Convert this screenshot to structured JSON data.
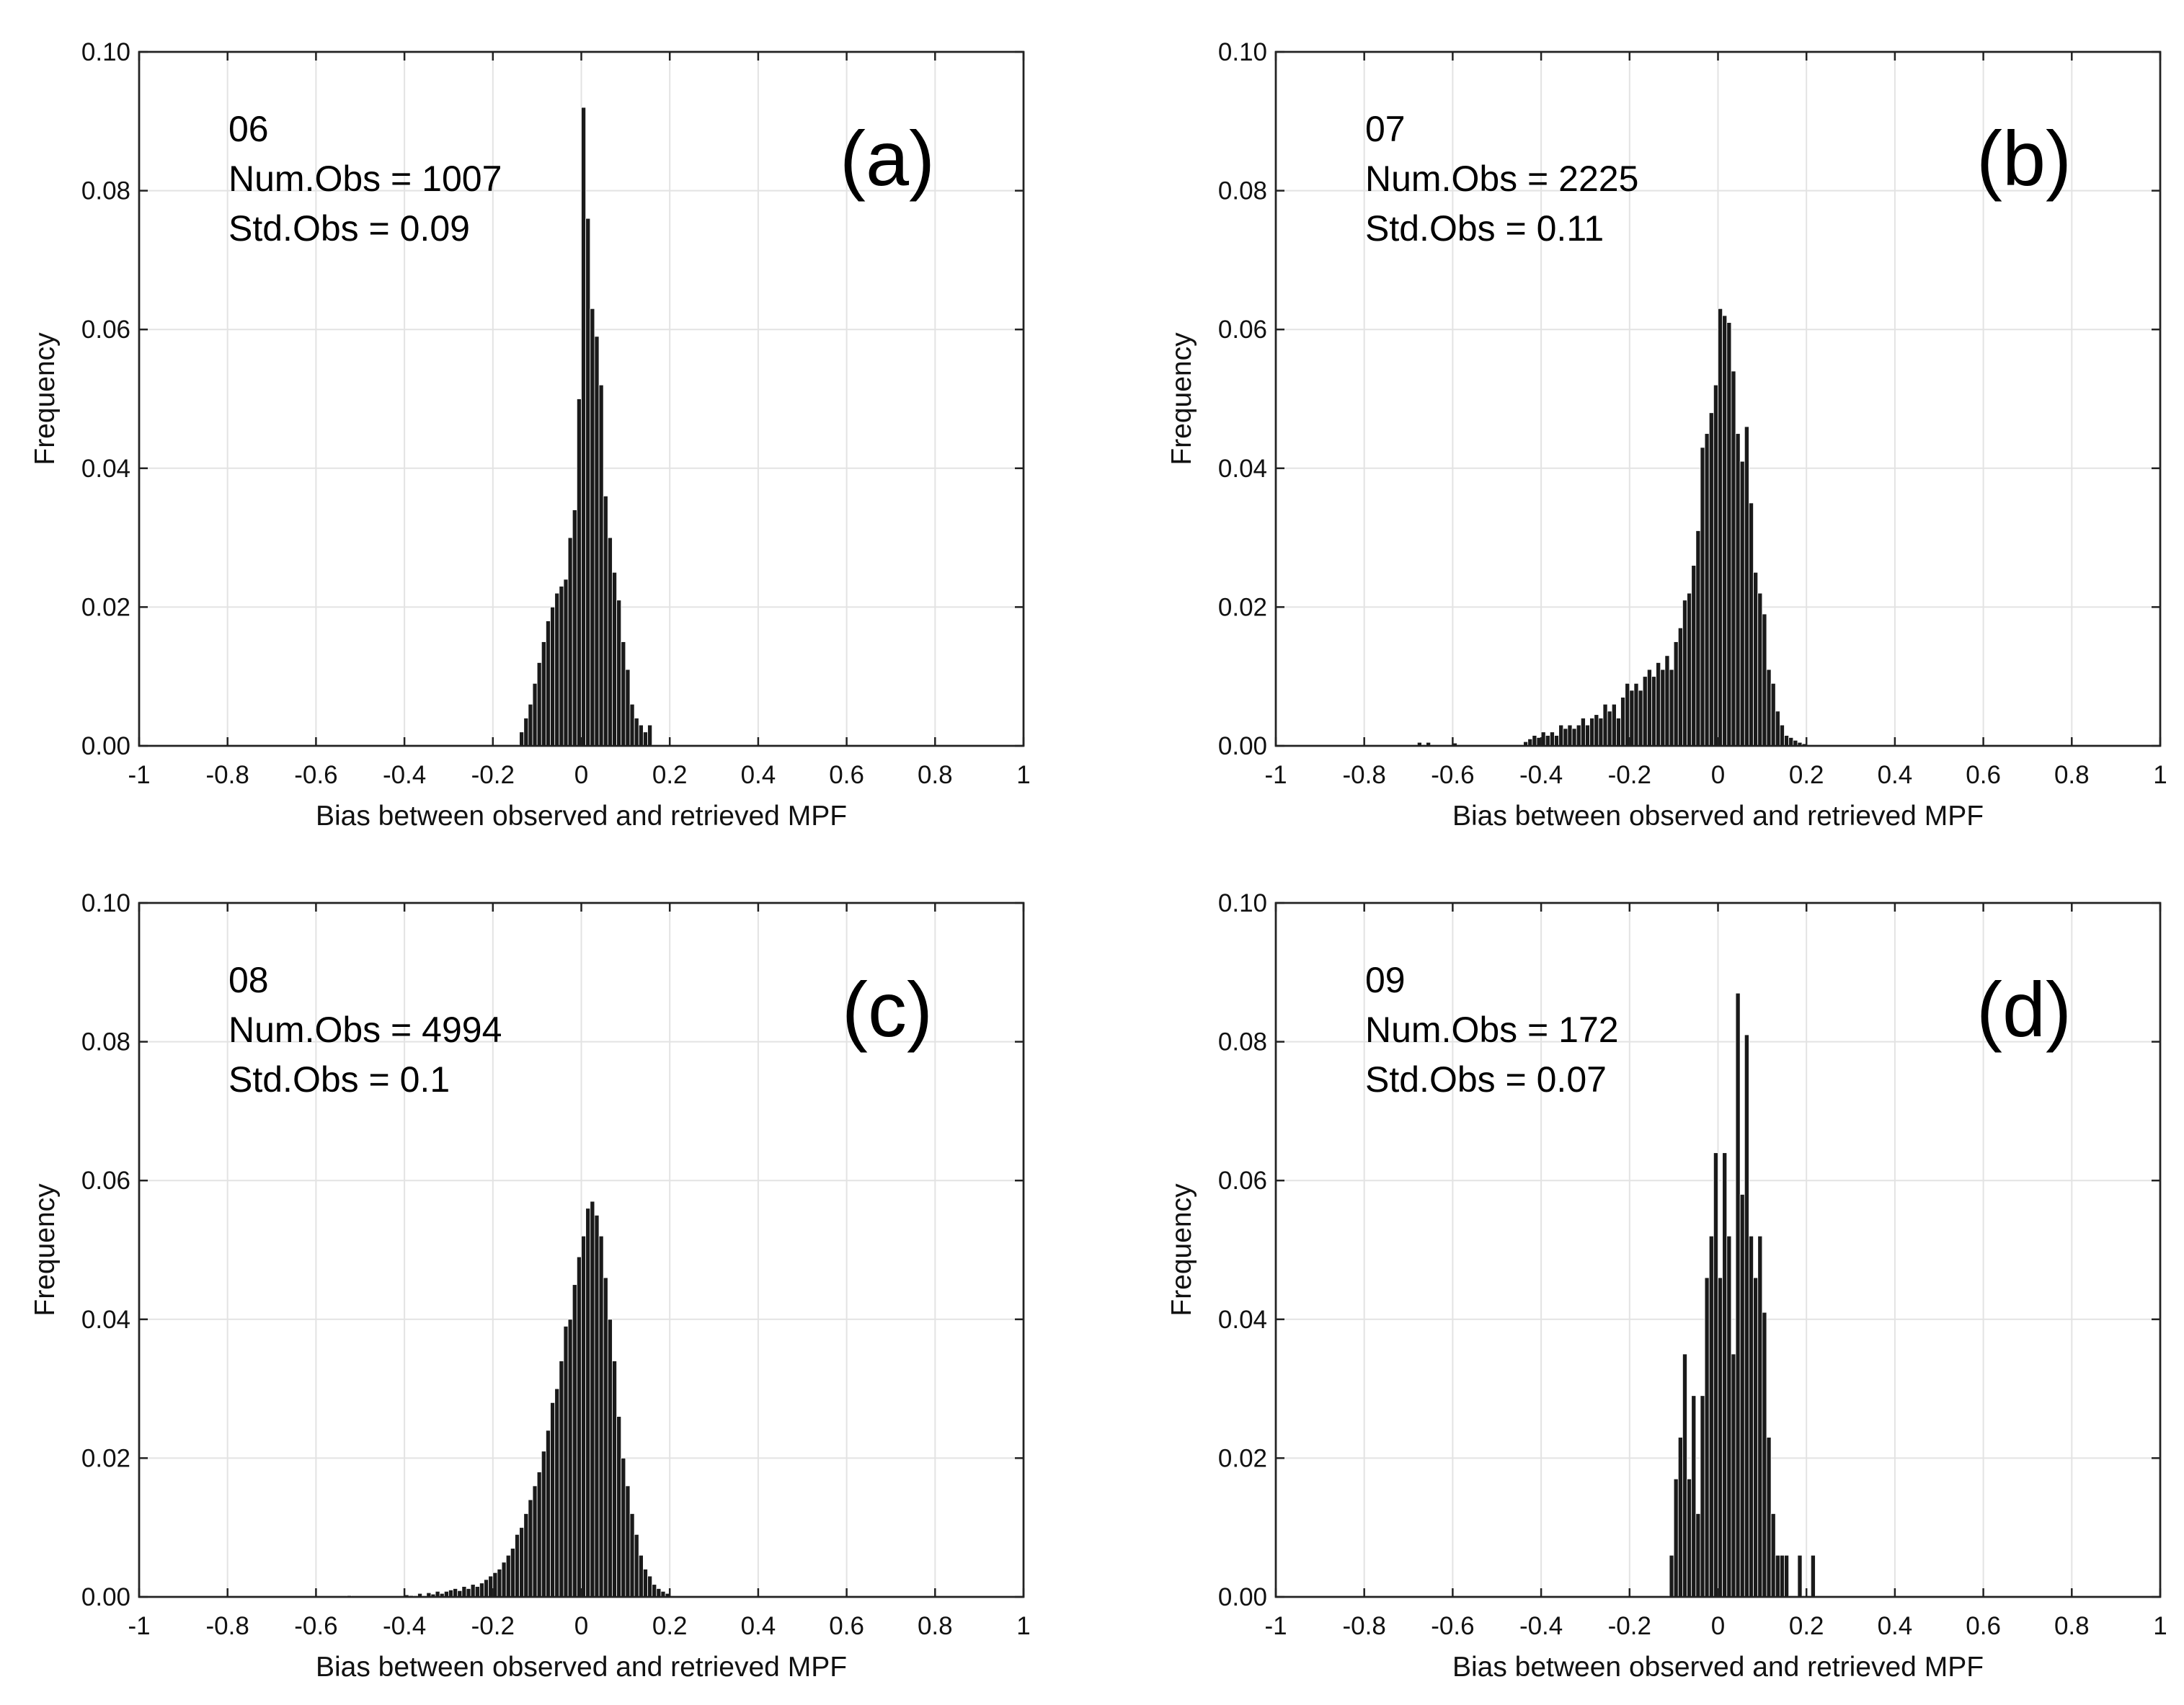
{
  "chart_data": [
    {
      "type": "bar",
      "panel": "(a)",
      "lines": [
        "06",
        "Num.Obs = 1007",
        "Std.Obs = 0.09"
      ],
      "xlabel": "Bias between observed and retrieved MPF",
      "ylabel": "Frequency",
      "xlim": [
        -1,
        1
      ],
      "ylim": [
        0,
        0.1
      ],
      "xticks": [
        "-1",
        "-0.8",
        "-0.6",
        "-0.4",
        "-0.2",
        "0",
        "0.2",
        "0.4",
        "0.6",
        "0.8",
        "1"
      ],
      "yticks": [
        "0.00",
        "0.02",
        "0.04",
        "0.06",
        "0.08",
        "0.10"
      ],
      "bin_width": 0.01,
      "bins": [
        [
          -0.14,
          0.002
        ],
        [
          -0.13,
          0.004
        ],
        [
          -0.12,
          0.006
        ],
        [
          -0.11,
          0.009
        ],
        [
          -0.1,
          0.012
        ],
        [
          -0.09,
          0.015
        ],
        [
          -0.08,
          0.018
        ],
        [
          -0.07,
          0.02
        ],
        [
          -0.06,
          0.022
        ],
        [
          -0.05,
          0.023
        ],
        [
          -0.04,
          0.024
        ],
        [
          -0.03,
          0.03
        ],
        [
          -0.02,
          0.034
        ],
        [
          -0.01,
          0.05
        ],
        [
          0.0,
          0.092
        ],
        [
          0.01,
          0.076
        ],
        [
          0.02,
          0.063
        ],
        [
          0.03,
          0.059
        ],
        [
          0.04,
          0.052
        ],
        [
          0.05,
          0.036
        ],
        [
          0.06,
          0.03
        ],
        [
          0.07,
          0.025
        ],
        [
          0.08,
          0.021
        ],
        [
          0.09,
          0.015
        ],
        [
          0.1,
          0.011
        ],
        [
          0.11,
          0.006
        ],
        [
          0.12,
          0.004
        ],
        [
          0.13,
          0.003
        ],
        [
          0.14,
          0.002
        ],
        [
          0.15,
          0.003
        ]
      ]
    },
    {
      "type": "bar",
      "panel": "(b)",
      "lines": [
        "07",
        "Num.Obs = 2225",
        "Std.Obs = 0.11"
      ],
      "xlabel": "Bias between observed and retrieved MPF",
      "ylabel": "Frequency",
      "xlim": [
        -1,
        1
      ],
      "ylim": [
        0,
        0.1
      ],
      "xticks": [
        "-1",
        "-0.8",
        "-0.6",
        "-0.4",
        "-0.2",
        "0",
        "0.2",
        "0.4",
        "0.6",
        "0.8",
        "1"
      ],
      "yticks": [
        "0.00",
        "0.02",
        "0.04",
        "0.06",
        "0.08",
        "0.10"
      ],
      "bin_width": 0.01,
      "bins": [
        [
          -0.68,
          0.0005
        ],
        [
          -0.66,
          0.0005
        ],
        [
          -0.6,
          0.0004
        ],
        [
          -0.44,
          0.0006
        ],
        [
          -0.43,
          0.001
        ],
        [
          -0.42,
          0.0015
        ],
        [
          -0.41,
          0.0012
        ],
        [
          -0.4,
          0.002
        ],
        [
          -0.39,
          0.0015
        ],
        [
          -0.38,
          0.002
        ],
        [
          -0.37,
          0.0015
        ],
        [
          -0.36,
          0.003
        ],
        [
          -0.35,
          0.0025
        ],
        [
          -0.34,
          0.003
        ],
        [
          -0.33,
          0.0025
        ],
        [
          -0.32,
          0.003
        ],
        [
          -0.31,
          0.004
        ],
        [
          -0.3,
          0.003
        ],
        [
          -0.29,
          0.004
        ],
        [
          -0.28,
          0.0045
        ],
        [
          -0.27,
          0.004
        ],
        [
          -0.26,
          0.006
        ],
        [
          -0.25,
          0.005
        ],
        [
          -0.24,
          0.006
        ],
        [
          -0.23,
          0.004
        ],
        [
          -0.22,
          0.007
        ],
        [
          -0.21,
          0.009
        ],
        [
          -0.2,
          0.008
        ],
        [
          -0.19,
          0.009
        ],
        [
          -0.18,
          0.008
        ],
        [
          -0.17,
          0.01
        ],
        [
          -0.16,
          0.011
        ],
        [
          -0.15,
          0.01
        ],
        [
          -0.14,
          0.012
        ],
        [
          -0.13,
          0.011
        ],
        [
          -0.12,
          0.013
        ],
        [
          -0.11,
          0.011
        ],
        [
          -0.1,
          0.015
        ],
        [
          -0.09,
          0.017
        ],
        [
          -0.08,
          0.021
        ],
        [
          -0.07,
          0.022
        ],
        [
          -0.06,
          0.026
        ],
        [
          -0.05,
          0.031
        ],
        [
          -0.04,
          0.043
        ],
        [
          -0.03,
          0.045
        ],
        [
          -0.02,
          0.048
        ],
        [
          -0.01,
          0.052
        ],
        [
          0.0,
          0.063
        ],
        [
          0.01,
          0.062
        ],
        [
          0.02,
          0.061
        ],
        [
          0.03,
          0.054
        ],
        [
          0.04,
          0.045
        ],
        [
          0.05,
          0.041
        ],
        [
          0.06,
          0.046
        ],
        [
          0.07,
          0.035
        ],
        [
          0.08,
          0.025
        ],
        [
          0.09,
          0.022
        ],
        [
          0.1,
          0.019
        ],
        [
          0.11,
          0.011
        ],
        [
          0.12,
          0.009
        ],
        [
          0.13,
          0.005
        ],
        [
          0.14,
          0.003
        ],
        [
          0.15,
          0.0015
        ],
        [
          0.16,
          0.0012
        ],
        [
          0.17,
          0.0008
        ],
        [
          0.18,
          0.0005
        ],
        [
          0.19,
          0.0003
        ]
      ]
    },
    {
      "type": "bar",
      "panel": "(c)",
      "lines": [
        "08",
        "Num.Obs = 4994",
        "Std.Obs = 0.1"
      ],
      "xlabel": "Bias between observed and retrieved MPF",
      "ylabel": "Frequency",
      "xlim": [
        -1,
        1
      ],
      "ylim": [
        0,
        0.1
      ],
      "xticks": [
        "-1",
        "-0.8",
        "-0.6",
        "-0.4",
        "-0.2",
        "0",
        "0.2",
        "0.4",
        "0.6",
        "0.8",
        "1"
      ],
      "yticks": [
        "0.00",
        "0.02",
        "0.04",
        "0.06",
        "0.08",
        "0.10"
      ],
      "bin_width": 0.01,
      "bins": [
        [
          -0.53,
          0.0002
        ],
        [
          -0.4,
          0.0003
        ],
        [
          -0.39,
          0.0002
        ],
        [
          -0.37,
          0.0005
        ],
        [
          -0.35,
          0.0006
        ],
        [
          -0.34,
          0.0004
        ],
        [
          -0.33,
          0.0008
        ],
        [
          -0.32,
          0.0005
        ],
        [
          -0.31,
          0.0008
        ],
        [
          -0.3,
          0.001
        ],
        [
          -0.29,
          0.0012
        ],
        [
          -0.28,
          0.0009
        ],
        [
          -0.27,
          0.0015
        ],
        [
          -0.26,
          0.0012
        ],
        [
          -0.25,
          0.0018
        ],
        [
          -0.24,
          0.0015
        ],
        [
          -0.23,
          0.002
        ],
        [
          -0.22,
          0.0025
        ],
        [
          -0.21,
          0.003
        ],
        [
          -0.2,
          0.0035
        ],
        [
          -0.19,
          0.004
        ],
        [
          -0.18,
          0.005
        ],
        [
          -0.17,
          0.006
        ],
        [
          -0.16,
          0.007
        ],
        [
          -0.15,
          0.009
        ],
        [
          -0.14,
          0.01
        ],
        [
          -0.13,
          0.012
        ],
        [
          -0.12,
          0.014
        ],
        [
          -0.11,
          0.016
        ],
        [
          -0.1,
          0.018
        ],
        [
          -0.09,
          0.021
        ],
        [
          -0.08,
          0.024
        ],
        [
          -0.07,
          0.028
        ],
        [
          -0.06,
          0.03
        ],
        [
          -0.05,
          0.034
        ],
        [
          -0.04,
          0.039
        ],
        [
          -0.03,
          0.04
        ],
        [
          -0.02,
          0.045
        ],
        [
          -0.01,
          0.049
        ],
        [
          0.0,
          0.052
        ],
        [
          0.01,
          0.056
        ],
        [
          0.02,
          0.057
        ],
        [
          0.03,
          0.055
        ],
        [
          0.04,
          0.052
        ],
        [
          0.05,
          0.046
        ],
        [
          0.06,
          0.04
        ],
        [
          0.07,
          0.034
        ],
        [
          0.08,
          0.026
        ],
        [
          0.09,
          0.02
        ],
        [
          0.1,
          0.016
        ],
        [
          0.11,
          0.012
        ],
        [
          0.12,
          0.009
        ],
        [
          0.13,
          0.006
        ],
        [
          0.14,
          0.004
        ],
        [
          0.15,
          0.003
        ],
        [
          0.16,
          0.0018
        ],
        [
          0.17,
          0.0012
        ],
        [
          0.18,
          0.0008
        ],
        [
          0.19,
          0.0005
        ]
      ]
    },
    {
      "type": "bar",
      "panel": "(d)",
      "lines": [
        "09",
        "Num.Obs = 172",
        "Std.Obs = 0.07"
      ],
      "xlabel": "Bias between observed and retrieved MPF",
      "ylabel": "Frequency",
      "xlim": [
        -1,
        1
      ],
      "ylim": [
        0,
        0.1
      ],
      "xticks": [
        "-1",
        "-0.8",
        "-0.6",
        "-0.4",
        "-0.2",
        "0",
        "0.2",
        "0.4",
        "0.6",
        "0.8",
        "1"
      ],
      "yticks": [
        "0.00",
        "0.02",
        "0.04",
        "0.06",
        "0.08",
        "0.10"
      ],
      "bin_width": 0.01,
      "bins": [
        [
          -0.11,
          0.006
        ],
        [
          -0.1,
          0.017
        ],
        [
          -0.09,
          0.023
        ],
        [
          -0.08,
          0.035
        ],
        [
          -0.07,
          0.017
        ],
        [
          -0.06,
          0.029
        ],
        [
          -0.05,
          0.012
        ],
        [
          -0.04,
          0.029
        ],
        [
          -0.03,
          0.046
        ],
        [
          -0.02,
          0.052
        ],
        [
          -0.01,
          0.064
        ],
        [
          0.0,
          0.046
        ],
        [
          0.01,
          0.064
        ],
        [
          0.02,
          0.052
        ],
        [
          0.03,
          0.035
        ],
        [
          0.04,
          0.087
        ],
        [
          0.05,
          0.058
        ],
        [
          0.06,
          0.081
        ],
        [
          0.07,
          0.052
        ],
        [
          0.08,
          0.046
        ],
        [
          0.09,
          0.052
        ],
        [
          0.1,
          0.041
        ],
        [
          0.11,
          0.023
        ],
        [
          0.12,
          0.012
        ],
        [
          0.13,
          0.006
        ],
        [
          0.14,
          0.006
        ],
        [
          0.15,
          0.006
        ],
        [
          0.18,
          0.006
        ],
        [
          0.21,
          0.006
        ]
      ]
    }
  ]
}
